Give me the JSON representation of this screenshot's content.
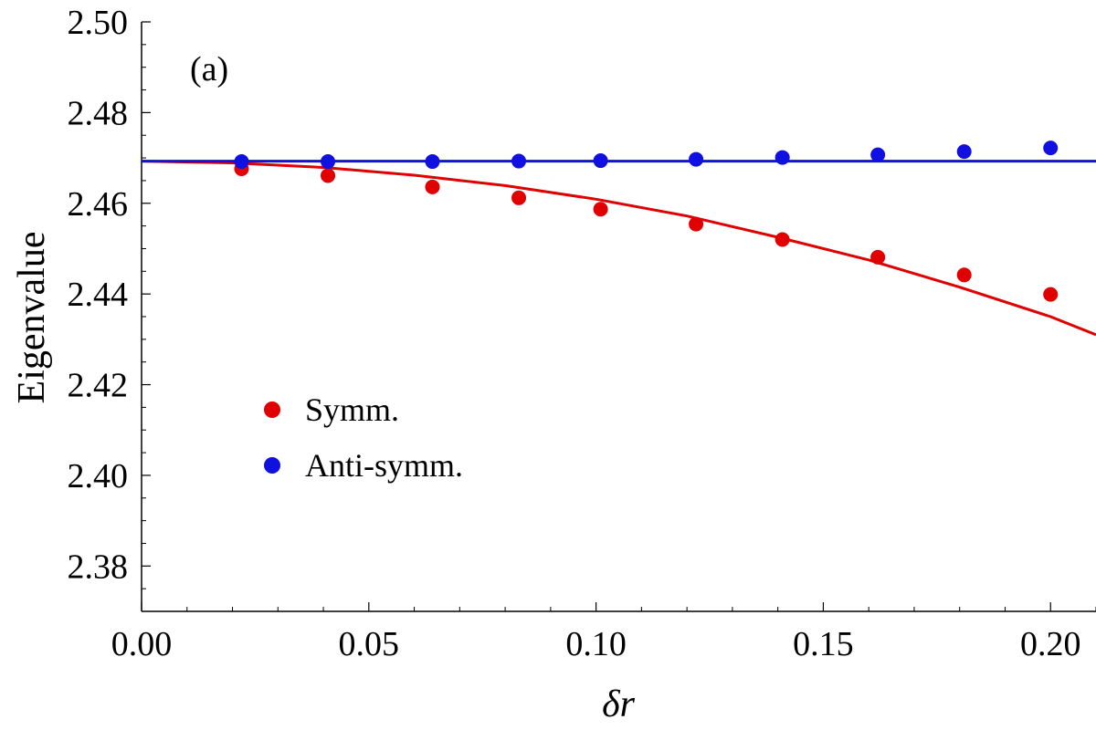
{
  "chart_data": {
    "type": "scatter",
    "panel_label": "(a)",
    "xlabel": "δr",
    "ylabel": "Eigenvalue",
    "xlim": [
      0.0,
      0.21
    ],
    "ylim": [
      2.37,
      2.5
    ],
    "xticks": [
      {
        "value": 0.0,
        "label": "0.00"
      },
      {
        "value": 0.05,
        "label": "0.05"
      },
      {
        "value": 0.1,
        "label": "0.10"
      },
      {
        "value": 0.15,
        "label": "0.15"
      },
      {
        "value": 0.2,
        "label": "0.20"
      }
    ],
    "yticks": [
      {
        "value": 2.38,
        "label": "2.38"
      },
      {
        "value": 2.4,
        "label": "2.40"
      },
      {
        "value": 2.42,
        "label": "2.42"
      },
      {
        "value": 2.44,
        "label": "2.44"
      },
      {
        "value": 2.46,
        "label": "2.46"
      },
      {
        "value": 2.48,
        "label": "2.48"
      },
      {
        "value": 2.5,
        "label": "2.50"
      }
    ],
    "legend_position": "center-left",
    "series": [
      {
        "name": "Symm.",
        "color": "#e00000",
        "x": [
          0.022,
          0.041,
          0.064,
          0.083,
          0.101,
          0.122,
          0.141,
          0.162,
          0.181,
          0.2
        ],
        "y": [
          2.4676,
          2.4661,
          2.4636,
          2.4612,
          2.4587,
          2.4554,
          2.452,
          2.4481,
          2.4442,
          2.4399
        ]
      },
      {
        "name": "Anti-symm.",
        "color": "#1010e0",
        "x": [
          0.022,
          0.041,
          0.064,
          0.083,
          0.101,
          0.122,
          0.141,
          0.162,
          0.181,
          0.2
        ],
        "y": [
          2.4692,
          2.4692,
          2.4692,
          2.4693,
          2.4694,
          2.4697,
          2.4701,
          2.4707,
          2.4714,
          2.4722
        ]
      }
    ],
    "curves": [
      {
        "name": "Symm. fit",
        "color": "#e00000",
        "x": [
          0.0,
          0.02,
          0.04,
          0.06,
          0.08,
          0.1,
          0.12,
          0.14,
          0.16,
          0.18,
          0.2,
          0.21
        ],
        "y": [
          2.4693,
          2.4689,
          2.4679,
          2.4662,
          2.4639,
          2.4609,
          2.4572,
          2.4525,
          2.4475,
          2.4415,
          2.435,
          2.431
        ]
      },
      {
        "name": "Anti-symm. fit",
        "color": "#1010e0",
        "x": [
          0.0,
          0.21
        ],
        "y": [
          2.4693,
          2.4693
        ]
      }
    ]
  }
}
